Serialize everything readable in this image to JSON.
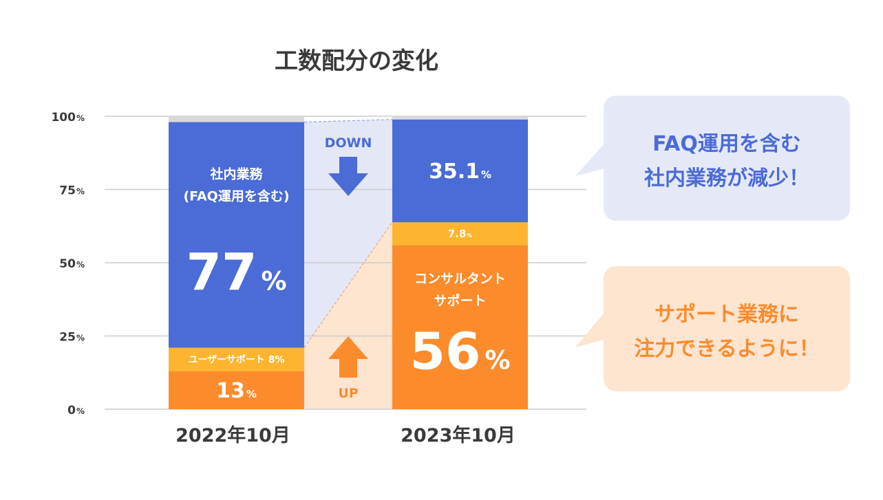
{
  "chart_data": {
    "type": "bar",
    "stacked": true,
    "title": "工数配分の変化",
    "categories": [
      "2022年10月",
      "2023年10月"
    ],
    "ylim": [
      0,
      100
    ],
    "yticks": [
      {
        "value": 0,
        "num": "0",
        "unit": "%"
      },
      {
        "value": 25,
        "num": "25",
        "unit": "%"
      },
      {
        "value": 50,
        "num": "50",
        "unit": "%"
      },
      {
        "value": 75,
        "num": "75",
        "unit": "%"
      },
      {
        "value": 100,
        "num": "100",
        "unit": "%"
      }
    ],
    "grid": true,
    "bars": [
      {
        "category": "2022年10月",
        "segments": [
          {
            "key": "consult",
            "value": 13,
            "color": "#FC8B2C",
            "labels": [
              {
                "num": "13",
                "unit": "%"
              }
            ]
          },
          {
            "key": "user",
            "value": 8,
            "color": "#FDB52F",
            "labels": [
              {
                "text": "ユーザーサポート  8%"
              }
            ]
          },
          {
            "key": "internal",
            "value": 77,
            "color": "#4B6BD6",
            "labels": [
              {
                "text": "社内業務"
              },
              {
                "text": "(FAQ運用を含む)"
              },
              {
                "num": "77",
                "unit": "%"
              }
            ]
          }
        ]
      },
      {
        "category": "2023年10月",
        "segments": [
          {
            "key": "consult",
            "value": 56,
            "color": "#FC8B2C",
            "labels": [
              {
                "text": "コンサルタント"
              },
              {
                "text": "サポート"
              },
              {
                "num": "56",
                "unit": "%"
              }
            ]
          },
          {
            "key": "user",
            "value": 7.8,
            "color": "#FDB52F",
            "labels": [
              {
                "num": "7.8",
                "unit": "%"
              }
            ]
          },
          {
            "key": "internal",
            "value": 35.1,
            "color": "#4B6BD6",
            "labels": [
              {
                "num": "35.1",
                "unit": "%"
              }
            ]
          }
        ]
      }
    ],
    "arrows": {
      "down": {
        "label": "DOWN",
        "color": "#4B6BD6"
      },
      "up": {
        "label": "UP",
        "color": "#FC8B2C"
      }
    },
    "callouts": [
      {
        "lines": [
          "FAQ運用を含む",
          "社内業務が減少！"
        ],
        "bg": "#E5E9F7",
        "color": "#4B6BD6"
      },
      {
        "lines": [
          "サポート業務に",
          "注力できるように！"
        ],
        "bg": "#FDE5D0",
        "color": "#FC8B2C"
      }
    ],
    "colors": {
      "remainder": "#D9D9D9",
      "grid": "#CCCCCC",
      "text": "#3A3A3A",
      "fill_down": "#E3E7F6",
      "fill_up": "#FDE5D0"
    }
  }
}
